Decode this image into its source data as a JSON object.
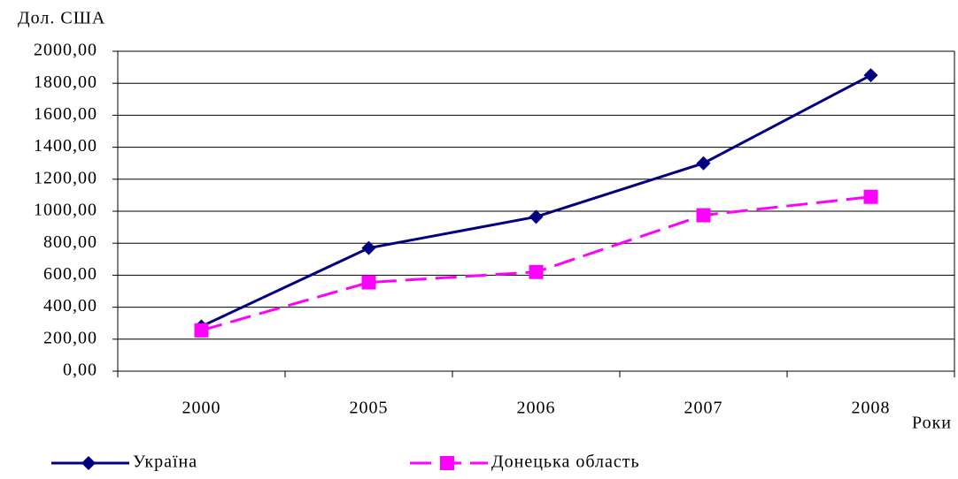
{
  "chart_data": {
    "type": "line",
    "y_label": "Дол. США",
    "x_label": "Роки",
    "categories": [
      "2000",
      "2005",
      "2006",
      "2007",
      "2008"
    ],
    "series": [
      {
        "name": "Україна",
        "color": "#000080",
        "marker": "diamond",
        "dashed": false,
        "values": [
          280,
          770,
          965,
          1300,
          1850
        ]
      },
      {
        "name": "Донецька область",
        "color": "#ff00ff",
        "marker": "square",
        "dashed": true,
        "values": [
          255,
          555,
          620,
          975,
          1090
        ]
      }
    ],
    "ylim": [
      0,
      2000
    ],
    "yticks": [
      {
        "value": 0,
        "label": "0,00"
      },
      {
        "value": 200,
        "label": "200,00"
      },
      {
        "value": 400,
        "label": "400,00"
      },
      {
        "value": 600,
        "label": "600,00"
      },
      {
        "value": 800,
        "label": "800,00"
      },
      {
        "value": 1000,
        "label": "1000,00"
      },
      {
        "value": 1200,
        "label": "1200,00"
      },
      {
        "value": 1400,
        "label": "1400,00"
      },
      {
        "value": 1600,
        "label": "1600,00"
      },
      {
        "value": 1800,
        "label": "1800,00"
      },
      {
        "value": 2000,
        "label": "2000,00"
      }
    ],
    "grid": true
  }
}
